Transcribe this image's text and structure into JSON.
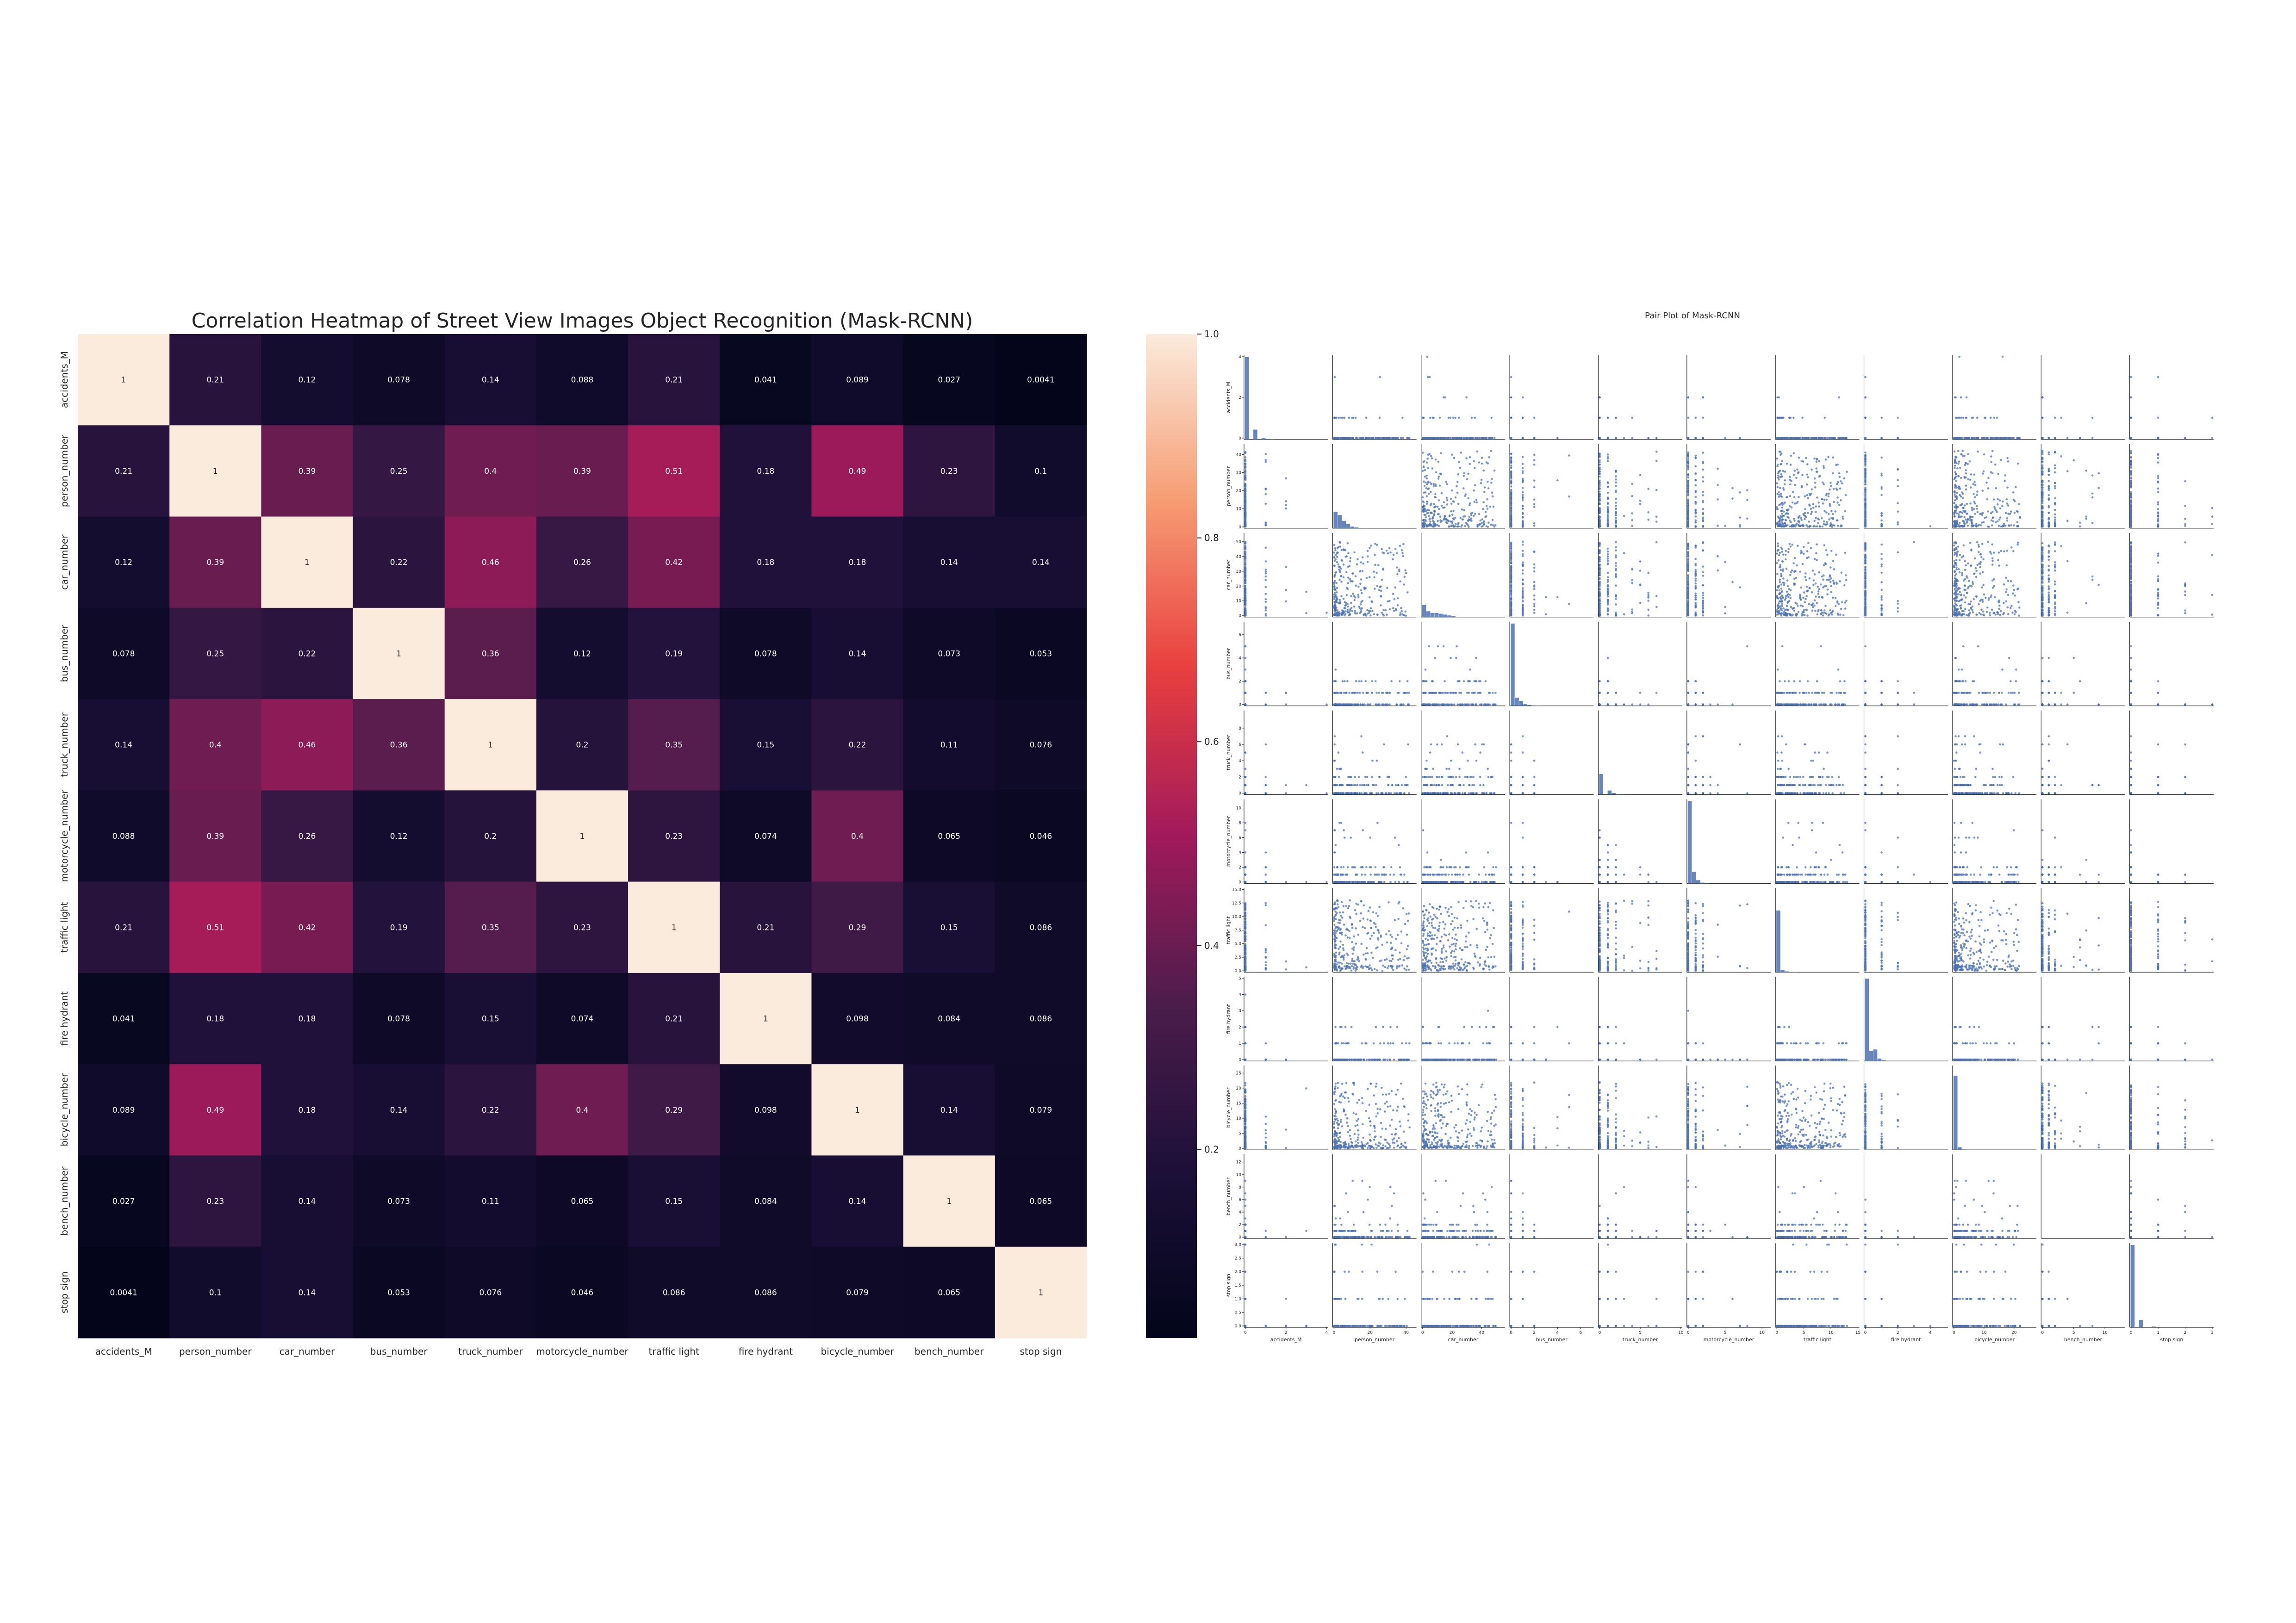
{
  "chart_data": [
    {
      "type": "heatmap",
      "title": "Correlation Heatmap of Street View Images Object Recognition (Mask-RCNN)",
      "labels": [
        "accidents_M",
        "person_number",
        "car_number",
        "bus_number",
        "truck_number",
        "motorcycle_number",
        "traffic light",
        "fire hydrant",
        "bicycle_number",
        "bench_number",
        "stop sign"
      ],
      "values": [
        [
          1,
          0.21,
          0.12,
          0.078,
          0.14,
          0.088,
          0.21,
          0.041,
          0.089,
          0.027,
          0.0041
        ],
        [
          0.21,
          1,
          0.39,
          0.25,
          0.4,
          0.39,
          0.51,
          0.18,
          0.49,
          0.23,
          0.1
        ],
        [
          0.12,
          0.39,
          1,
          0.22,
          0.46,
          0.26,
          0.42,
          0.18,
          0.18,
          0.14,
          0.14
        ],
        [
          0.078,
          0.25,
          0.22,
          1,
          0.36,
          0.12,
          0.19,
          0.078,
          0.14,
          0.073,
          0.053
        ],
        [
          0.14,
          0.4,
          0.46,
          0.36,
          1,
          0.2,
          0.35,
          0.15,
          0.22,
          0.11,
          0.076
        ],
        [
          0.088,
          0.39,
          0.26,
          0.12,
          0.2,
          1,
          0.23,
          0.074,
          0.4,
          0.065,
          0.046
        ],
        [
          0.21,
          0.51,
          0.42,
          0.19,
          0.35,
          0.23,
          1,
          0.21,
          0.29,
          0.15,
          0.086
        ],
        [
          0.041,
          0.18,
          0.18,
          0.078,
          0.15,
          0.074,
          0.21,
          1,
          0.098,
          0.084,
          0.086
        ],
        [
          0.089,
          0.49,
          0.18,
          0.14,
          0.22,
          0.4,
          0.29,
          0.098,
          1,
          0.14,
          0.079
        ],
        [
          0.027,
          0.23,
          0.14,
          0.073,
          0.11,
          0.065,
          0.15,
          0.084,
          0.14,
          1,
          0.065
        ],
        [
          0.0041,
          0.1,
          0.14,
          0.053,
          0.076,
          0.046,
          0.086,
          0.086,
          0.079,
          0.065,
          1
        ]
      ],
      "colorbar": {
        "range": [
          0,
          1
        ],
        "ticks": [
          "0.2",
          "0.4",
          "0.6",
          "0.8",
          "1.0"
        ]
      },
      "colormap": [
        "#03051a",
        "#1c1038",
        "#4c1d4b",
        "#a11a5b",
        "#e83f3f",
        "#f69c73",
        "#faebdd"
      ]
    },
    {
      "type": "scatter",
      "subtype": "pair_plot",
      "title": "Pair Plot of Mask-RCNN",
      "variables": [
        "accidents_M",
        "person_number",
        "car_number",
        "bus_number",
        "truck_number",
        "motorcycle_number",
        "traffic light",
        "fire hydrant",
        "bicycle_number",
        "bench_number",
        "stop sign"
      ],
      "axis_ranges": [
        [
          0,
          4
        ],
        [
          0,
          45
        ],
        [
          0,
          55
        ],
        [
          0,
          7
        ],
        [
          0,
          10
        ],
        [
          0,
          11
        ],
        [
          0,
          15
        ],
        [
          0,
          5
        ],
        [
          0,
          27
        ],
        [
          0,
          13
        ],
        [
          0,
          3
        ]
      ],
      "axis_ticks": [
        [
          "0",
          "2",
          "4"
        ],
        [
          "0",
          "10",
          "20",
          "30",
          "40"
        ],
        [
          "0",
          "10",
          "20",
          "30",
          "40",
          "50"
        ],
        [
          "0",
          "2",
          "4",
          "6"
        ],
        [
          "0",
          "2",
          "4",
          "6",
          "8"
        ],
        [
          "0",
          "2",
          "4",
          "6",
          "8",
          "10"
        ],
        [
          "0.0",
          "2.5",
          "5.0",
          "7.5",
          "10.0",
          "12.5",
          "15.0"
        ],
        [
          "0",
          "1",
          "2",
          "3",
          "4",
          "5"
        ],
        [
          "0",
          "5",
          "10",
          "15",
          "20",
          "25"
        ],
        [
          "0",
          "2",
          "4",
          "6",
          "8",
          "10",
          "12"
        ],
        [
          "0.0",
          "0.5",
          "1.0",
          "1.5",
          "2.0",
          "2.5",
          "3.0"
        ]
      ],
      "x_tick_values": [
        [
          "0",
          "2",
          "4"
        ],
        [
          "0",
          "20",
          "40"
        ],
        [
          "0",
          "20",
          "40"
        ],
        [
          "0",
          "2",
          "4",
          "6"
        ],
        [
          "0",
          "5",
          "10"
        ],
        [
          "0",
          "5",
          "10"
        ],
        [
          "0",
          "5",
          "10",
          "15"
        ],
        [
          "0",
          "2",
          "4"
        ],
        [
          "0",
          "10",
          "20"
        ],
        [
          "0",
          "5",
          "10"
        ],
        [
          "0",
          "1",
          "2",
          "3"
        ]
      ],
      "point_color": "#4c72b0",
      "diagonal": "histogram"
    }
  ]
}
